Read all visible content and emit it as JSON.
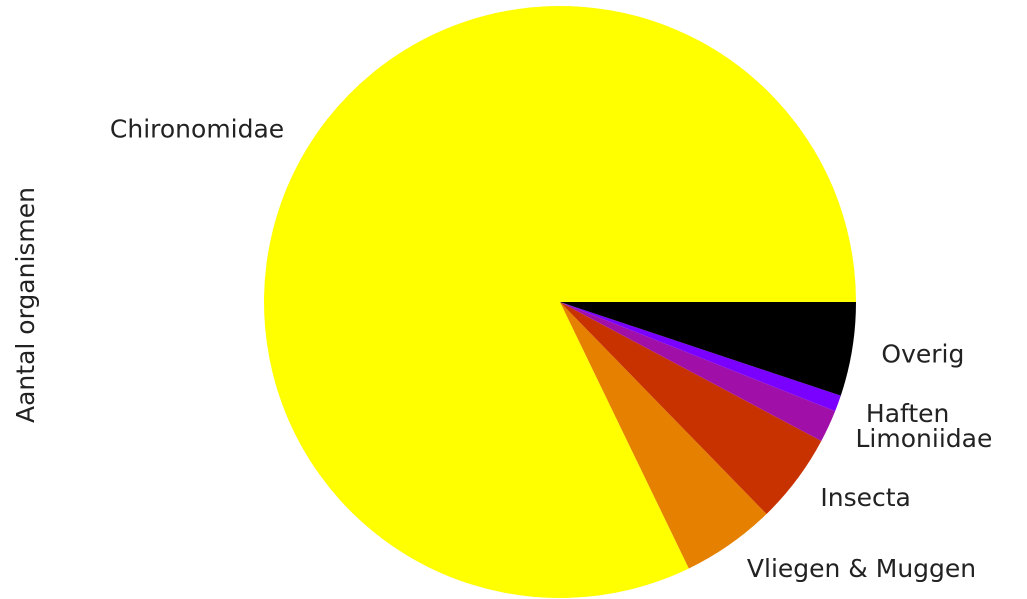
{
  "chart_data": {
    "type": "pie",
    "ylabel": "Aantal organismen",
    "start_angle_deg": 0,
    "direction": "counterclockwise",
    "slices": [
      {
        "label": "Chironomidae",
        "value": 83.4,
        "color": "#ffff00"
      },
      {
        "label": "Vliegen & Muggen",
        "value": 5.2,
        "color": "#e68000"
      },
      {
        "label": "Insecta",
        "value": 5.0,
        "color": "#c83200"
      },
      {
        "label": "Limoniidae",
        "value": 1.8,
        "color": "#a010a8"
      },
      {
        "label": "Haften",
        "value": 0.9,
        "color": "#7a00ff"
      },
      {
        "label": "Overig",
        "value": 5.2,
        "color": "#000000"
      }
    ]
  }
}
